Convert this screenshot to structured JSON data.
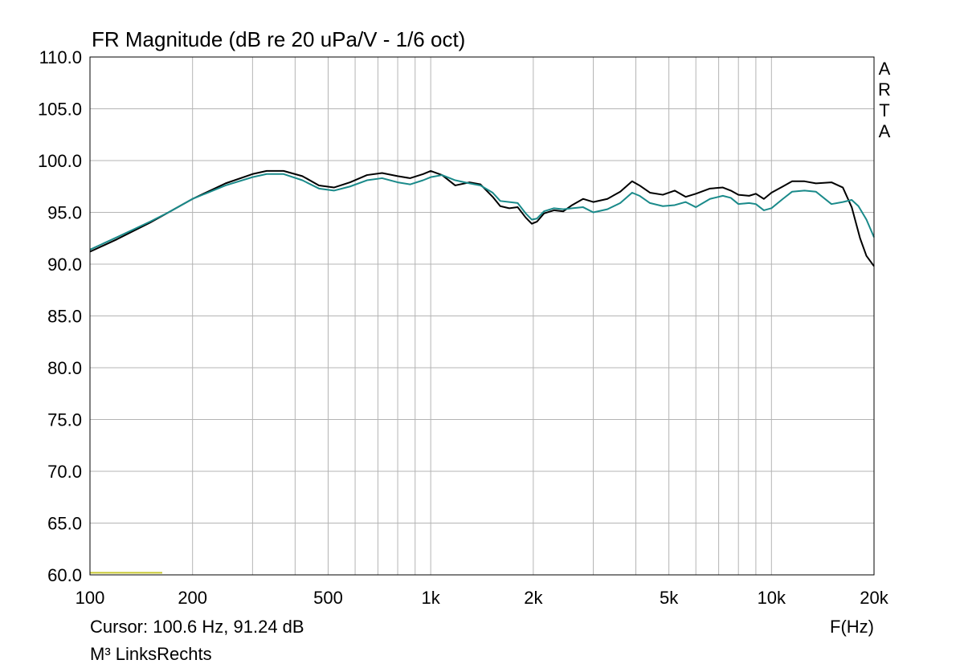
{
  "chart_data": {
    "type": "line",
    "title": "FR Magnitude (dB re 20 uPa/V - 1/6 oct)",
    "xlabel": "F(Hz)",
    "ylabel": "",
    "xscale": "log",
    "xlim": [
      100,
      20000
    ],
    "ylim": [
      60,
      110
    ],
    "grid": true,
    "xticks": [
      {
        "value": 100,
        "label": "100"
      },
      {
        "value": 200,
        "label": "200"
      },
      {
        "value": 500,
        "label": "500"
      },
      {
        "value": 1000,
        "label": "1k"
      },
      {
        "value": 2000,
        "label": "2k"
      },
      {
        "value": 5000,
        "label": "5k"
      },
      {
        "value": 10000,
        "label": "10k"
      },
      {
        "value": 20000,
        "label": "20k"
      }
    ],
    "yticks": [
      {
        "value": 110,
        "label": "110.0"
      },
      {
        "value": 105,
        "label": "105.0"
      },
      {
        "value": 100,
        "label": "100.0"
      },
      {
        "value": 95,
        "label": "95.0"
      },
      {
        "value": 90,
        "label": "90.0"
      },
      {
        "value": 85,
        "label": "85.0"
      },
      {
        "value": 80,
        "label": "80.0"
      },
      {
        "value": 75,
        "label": "75.0"
      },
      {
        "value": 70,
        "label": "70.0"
      },
      {
        "value": 65,
        "label": "65.0"
      },
      {
        "value": 60,
        "label": "60.0"
      }
    ],
    "series": [
      {
        "color": "#000000",
        "points": [
          [
            100,
            91.2
          ],
          [
            120,
            92.4
          ],
          [
            150,
            94.0
          ],
          [
            170,
            95.0
          ],
          [
            200,
            96.3
          ],
          [
            250,
            97.8
          ],
          [
            300,
            98.7
          ],
          [
            330,
            99.0
          ],
          [
            370,
            99.0
          ],
          [
            420,
            98.5
          ],
          [
            470,
            97.6
          ],
          [
            520,
            97.4
          ],
          [
            580,
            97.9
          ],
          [
            650,
            98.6
          ],
          [
            720,
            98.8
          ],
          [
            800,
            98.5
          ],
          [
            870,
            98.3
          ],
          [
            950,
            98.7
          ],
          [
            1000,
            99.0
          ],
          [
            1080,
            98.6
          ],
          [
            1180,
            97.6
          ],
          [
            1300,
            97.9
          ],
          [
            1400,
            97.7
          ],
          [
            1520,
            96.5
          ],
          [
            1600,
            95.6
          ],
          [
            1700,
            95.4
          ],
          [
            1800,
            95.5
          ],
          [
            1900,
            94.5
          ],
          [
            1980,
            93.9
          ],
          [
            2050,
            94.1
          ],
          [
            2150,
            94.9
          ],
          [
            2300,
            95.2
          ],
          [
            2450,
            95.1
          ],
          [
            2600,
            95.7
          ],
          [
            2800,
            96.3
          ],
          [
            3000,
            96.0
          ],
          [
            3300,
            96.3
          ],
          [
            3600,
            97.0
          ],
          [
            3900,
            98.0
          ],
          [
            4100,
            97.6
          ],
          [
            4400,
            96.9
          ],
          [
            4800,
            96.7
          ],
          [
            5200,
            97.1
          ],
          [
            5600,
            96.5
          ],
          [
            6000,
            96.8
          ],
          [
            6600,
            97.3
          ],
          [
            7200,
            97.4
          ],
          [
            7600,
            97.1
          ],
          [
            8000,
            96.7
          ],
          [
            8600,
            96.6
          ],
          [
            9000,
            96.8
          ],
          [
            9500,
            96.3
          ],
          [
            10000,
            96.9
          ],
          [
            10800,
            97.5
          ],
          [
            11500,
            98.0
          ],
          [
            12500,
            98.0
          ],
          [
            13500,
            97.8
          ],
          [
            15000,
            97.9
          ],
          [
            16200,
            97.4
          ],
          [
            17200,
            95.5
          ],
          [
            18200,
            92.5
          ],
          [
            19000,
            90.8
          ],
          [
            20000,
            89.8
          ]
        ]
      },
      {
        "color": "#1a8a8a",
        "points": [
          [
            100,
            91.4
          ],
          [
            120,
            92.6
          ],
          [
            150,
            94.1
          ],
          [
            170,
            95.0
          ],
          [
            200,
            96.3
          ],
          [
            250,
            97.6
          ],
          [
            300,
            98.4
          ],
          [
            330,
            98.7
          ],
          [
            370,
            98.7
          ],
          [
            420,
            98.1
          ],
          [
            470,
            97.3
          ],
          [
            520,
            97.1
          ],
          [
            580,
            97.5
          ],
          [
            650,
            98.1
          ],
          [
            720,
            98.3
          ],
          [
            800,
            97.9
          ],
          [
            870,
            97.7
          ],
          [
            950,
            98.1
          ],
          [
            1000,
            98.4
          ],
          [
            1080,
            98.6
          ],
          [
            1180,
            98.1
          ],
          [
            1300,
            97.8
          ],
          [
            1400,
            97.6
          ],
          [
            1520,
            96.9
          ],
          [
            1600,
            96.1
          ],
          [
            1700,
            96.0
          ],
          [
            1800,
            95.9
          ],
          [
            1900,
            94.9
          ],
          [
            1980,
            94.3
          ],
          [
            2050,
            94.4
          ],
          [
            2150,
            95.1
          ],
          [
            2300,
            95.4
          ],
          [
            2450,
            95.3
          ],
          [
            2600,
            95.4
          ],
          [
            2800,
            95.5
          ],
          [
            3000,
            95.0
          ],
          [
            3300,
            95.3
          ],
          [
            3600,
            95.9
          ],
          [
            3900,
            96.9
          ],
          [
            4100,
            96.6
          ],
          [
            4400,
            95.9
          ],
          [
            4800,
            95.6
          ],
          [
            5200,
            95.7
          ],
          [
            5600,
            96.0
          ],
          [
            6000,
            95.5
          ],
          [
            6600,
            96.3
          ],
          [
            7200,
            96.6
          ],
          [
            7600,
            96.4
          ],
          [
            8000,
            95.8
          ],
          [
            8600,
            95.9
          ],
          [
            9000,
            95.8
          ],
          [
            9500,
            95.2
          ],
          [
            10000,
            95.4
          ],
          [
            10800,
            96.3
          ],
          [
            11500,
            97.0
          ],
          [
            12500,
            97.1
          ],
          [
            13500,
            97.0
          ],
          [
            15000,
            95.8
          ],
          [
            16200,
            96.0
          ],
          [
            17200,
            96.2
          ],
          [
            18000,
            95.6
          ],
          [
            19000,
            94.3
          ],
          [
            20000,
            92.6
          ]
        ]
      },
      {
        "color": "#c8c832",
        "points": [
          [
            100,
            60.2
          ],
          [
            163,
            60.2
          ]
        ]
      }
    ],
    "annotations": [
      "ARTA"
    ]
  },
  "footer": {
    "cursor": "Cursor: 100.6 Hz, 91.24 dB",
    "measurement": "M³ LinksRechts"
  },
  "brand": {
    "letters": [
      "A",
      "R",
      "T",
      "A"
    ]
  }
}
